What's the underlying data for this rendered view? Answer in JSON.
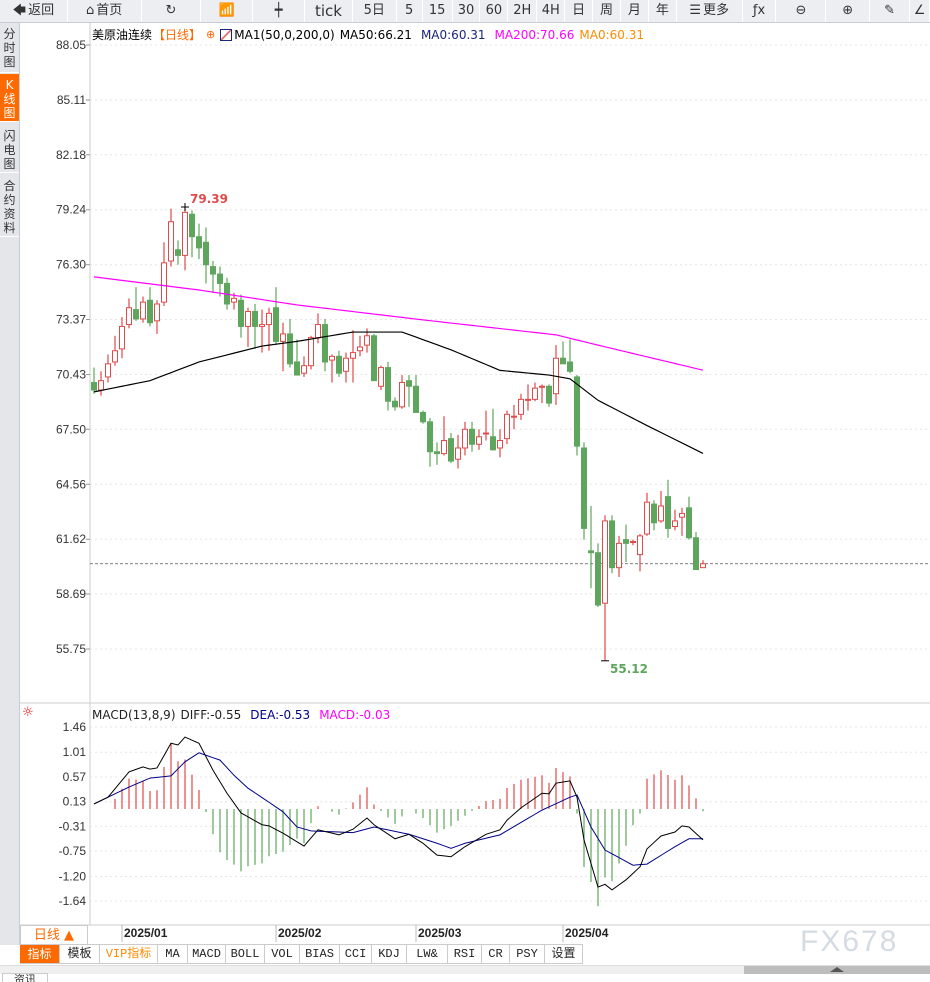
{
  "toolbar": {
    "items": [
      {
        "label": "返回",
        "icon": "back-arrow-icon",
        "glyph": "🡄"
      },
      {
        "label": "首页",
        "icon": "home-icon",
        "glyph": "⌂"
      },
      {
        "label": "",
        "icon": "refresh-icon",
        "glyph": "↻"
      },
      {
        "label": "",
        "icon": "bar-chart-icon",
        "glyph": "📶"
      },
      {
        "label": "",
        "icon": "candlestick-icon",
        "glyph": "┿"
      },
      {
        "label": "tick"
      },
      {
        "label": "5日"
      },
      {
        "label": "5"
      },
      {
        "label": "15"
      },
      {
        "label": "30"
      },
      {
        "label": "60"
      },
      {
        "label": "2H"
      },
      {
        "label": "4H"
      },
      {
        "label": "日"
      },
      {
        "label": "周"
      },
      {
        "label": "月"
      },
      {
        "label": "年"
      },
      {
        "label": "更多",
        "icon": "menu-icon",
        "glyph": "☰"
      },
      {
        "label": "",
        "icon": "function-icon",
        "glyph": "ƒx"
      },
      {
        "label": "",
        "icon": "zoom-out-icon",
        "glyph": "⊖"
      },
      {
        "label": "",
        "icon": "zoom-in-icon",
        "glyph": "⊕"
      },
      {
        "label": "",
        "icon": "pen-icon",
        "glyph": "✎"
      },
      {
        "label": "",
        "icon": "ruler-icon",
        "glyph": "∠"
      }
    ]
  },
  "sidebar": {
    "tabs": [
      {
        "label": [
          "分",
          "时",
          "图"
        ],
        "active": false
      },
      {
        "label": [
          "K",
          "线",
          "图"
        ],
        "active": true
      },
      {
        "label": [
          "闪",
          "电",
          "图"
        ],
        "active": false
      },
      {
        "label": [
          "合",
          "约",
          "资",
          "料"
        ],
        "active": false
      }
    ]
  },
  "header": {
    "instrument": "美原油连续",
    "period": "【日线】",
    "ma_name": "MA1(50,0,200,0)",
    "ma50": "MA50:66.21",
    "ma0a": "MA0:60.31",
    "ma200": "MA200:70.66",
    "ma0b": "MA0:60.31"
  },
  "macd_header": {
    "name": "MACD(13,8,9)",
    "diff": "DIFF:-0.55",
    "dea": "DEA:-0.53",
    "macd": "MACD:-0.03"
  },
  "colors": {
    "up": "#e04a4a",
    "down": "#5ea65e",
    "ma50": "#000000",
    "ma200": "#ff00ff",
    "diff": "#000000",
    "dea": "#00008b",
    "accent": "#ff6a00",
    "last_price_line": "#555555"
  },
  "chart_data": [
    {
      "type": "candlestick",
      "title": "美原油连续",
      "y_ticks": [
        "88.05",
        "85.11",
        "82.18",
        "79.24",
        "76.30",
        "73.37",
        "70.43",
        "67.50",
        "64.56",
        "61.62",
        "58.69",
        "55.75"
      ],
      "ylim": [
        55.75,
        88.05
      ],
      "x_labels": [
        {
          "label": "2025/01",
          "index": 4
        },
        {
          "label": "2025/02",
          "index": 26
        },
        {
          "label": "2025/03",
          "index": 46
        },
        {
          "label": "2025/04",
          "index": 67
        }
      ],
      "ohlc": [
        [
          70.0,
          70.8,
          69.4,
          69.6
        ],
        [
          69.6,
          70.6,
          69.3,
          70.1
        ],
        [
          70.3,
          71.5,
          70.0,
          71.0
        ],
        [
          71.1,
          72.5,
          70.9,
          71.7
        ],
        [
          71.8,
          73.5,
          71.3,
          73.0
        ],
        [
          73.1,
          74.5,
          72.9,
          74.0
        ],
        [
          73.9,
          75.1,
          73.3,
          73.4
        ],
        [
          73.4,
          74.6,
          73.2,
          74.3
        ],
        [
          74.4,
          75.1,
          73.0,
          73.2
        ],
        [
          73.3,
          74.4,
          72.6,
          74.2
        ],
        [
          74.3,
          77.5,
          74.1,
          76.4
        ],
        [
          76.5,
          79.3,
          76.2,
          78.6
        ],
        [
          77.1,
          77.6,
          76.3,
          76.8
        ],
        [
          76.8,
          79.39,
          76.0,
          79.1
        ],
        [
          79.0,
          79.2,
          76.7,
          77.8
        ],
        [
          77.8,
          78.5,
          76.6,
          77.2
        ],
        [
          77.5,
          78.3,
          75.3,
          76.3
        ],
        [
          76.2,
          76.5,
          74.8,
          75.8
        ],
        [
          75.8,
          76.2,
          74.6,
          75.3
        ],
        [
          75.3,
          75.6,
          73.9,
          74.2
        ],
        [
          74.3,
          74.8,
          73.9,
          74.5
        ],
        [
          74.4,
          74.7,
          72.4,
          73.0
        ],
        [
          73.0,
          74.0,
          71.9,
          73.8
        ],
        [
          73.8,
          74.2,
          71.8,
          73.0
        ],
        [
          73.0,
          73.9,
          71.6,
          73.1
        ],
        [
          73.1,
          74.0,
          71.7,
          73.7
        ],
        [
          74.0,
          75.1,
          72.0,
          72.2
        ],
        [
          72.2,
          73.2,
          70.6,
          72.6
        ],
        [
          72.6,
          73.4,
          70.8,
          71.0
        ],
        [
          71.1,
          72.3,
          70.4,
          70.4
        ],
        [
          70.5,
          71.4,
          70.3,
          70.9
        ],
        [
          70.9,
          72.5,
          70.7,
          72.4
        ],
        [
          72.4,
          73.7,
          72.1,
          73.1
        ],
        [
          73.1,
          73.4,
          70.6,
          71.1
        ],
        [
          71.2,
          71.5,
          70.0,
          71.4
        ],
        [
          71.4,
          71.7,
          70.3,
          70.5
        ],
        [
          70.6,
          71.6,
          70.0,
          71.3
        ],
        [
          71.3,
          72.8,
          70.0,
          71.6
        ],
        [
          71.7,
          72.5,
          71.4,
          71.9
        ],
        [
          72.0,
          72.9,
          71.6,
          72.5
        ],
        [
          72.5,
          72.6,
          70.1,
          70.1
        ],
        [
          69.8,
          70.9,
          69.6,
          70.8
        ],
        [
          70.8,
          71.1,
          68.5,
          69.0
        ],
        [
          69.0,
          69.2,
          68.5,
          68.7
        ],
        [
          68.7,
          70.4,
          68.6,
          70.0
        ],
        [
          70.1,
          70.4,
          68.7,
          69.8
        ],
        [
          69.8,
          70.4,
          68.4,
          68.4
        ],
        [
          68.4,
          68.5,
          67.8,
          67.9
        ],
        [
          67.9,
          68.1,
          65.5,
          66.3
        ],
        [
          66.3,
          66.8,
          65.6,
          66.2
        ],
        [
          66.2,
          68.2,
          66.1,
          66.9
        ],
        [
          67.0,
          67.3,
          65.7,
          65.8
        ],
        [
          65.9,
          67.2,
          65.4,
          66.5
        ],
        [
          66.5,
          67.9,
          66.1,
          67.5
        ],
        [
          67.5,
          67.9,
          66.3,
          66.7
        ],
        [
          66.7,
          67.5,
          66.4,
          67.1
        ],
        [
          67.3,
          68.5,
          66.9,
          67.3
        ],
        [
          67.1,
          68.6,
          66.4,
          66.4
        ],
        [
          66.5,
          67.5,
          66.0,
          66.9
        ],
        [
          67.0,
          68.5,
          66.7,
          68.3
        ],
        [
          68.2,
          68.8,
          67.5,
          68.2
        ],
        [
          68.3,
          69.4,
          68.0,
          69.1
        ],
        [
          69.1,
          69.9,
          68.5,
          69.1
        ],
        [
          69.1,
          70.0,
          69.0,
          69.7
        ],
        [
          69.8,
          69.9,
          68.9,
          69.8
        ],
        [
          69.8,
          69.9,
          68.7,
          68.9
        ],
        [
          69.4,
          72.0,
          68.8,
          71.3
        ],
        [
          71.3,
          72.2,
          71.0,
          71.0
        ],
        [
          71.1,
          72.3,
          70.5,
          70.6
        ],
        [
          70.3,
          70.4,
          66.1,
          66.6
        ],
        [
          66.5,
          66.8,
          61.6,
          62.2
        ],
        [
          61.0,
          63.4,
          59.0,
          60.9
        ],
        [
          60.9,
          61.4,
          58.0,
          58.1
        ],
        [
          58.2,
          62.9,
          55.12,
          62.6
        ],
        [
          62.6,
          62.9,
          59.8,
          60.1
        ],
        [
          60.1,
          61.8,
          59.6,
          61.4
        ],
        [
          61.6,
          62.4,
          60.4,
          61.4
        ],
        [
          61.5,
          61.6,
          61.3,
          61.5
        ],
        [
          60.8,
          61.9,
          59.9,
          61.8
        ],
        [
          61.9,
          64.1,
          61.8,
          63.6
        ],
        [
          63.5,
          63.7,
          62.1,
          62.5
        ],
        [
          62.6,
          64.2,
          62.5,
          63.4
        ],
        [
          63.9,
          64.8,
          61.7,
          62.2
        ],
        [
          62.3,
          63.2,
          62.1,
          62.6
        ],
        [
          62.8,
          63.3,
          61.8,
          63.0
        ],
        [
          63.3,
          63.9,
          61.6,
          61.7
        ],
        [
          61.7,
          62.0,
          60.0,
          60.0
        ],
        [
          60.1,
          60.5,
          60.1,
          60.31
        ]
      ],
      "series": [
        {
          "name": "MA50",
          "knots": [
            [
              0,
              69.5
            ],
            [
              8,
              70.1
            ],
            [
              15,
              71.1
            ],
            [
              24,
              71.95
            ],
            [
              29,
              72.2
            ],
            [
              37,
              72.7
            ],
            [
              44,
              72.7
            ],
            [
              51,
              71.75
            ],
            [
              58,
              70.65
            ],
            [
              65,
              70.4
            ],
            [
              68,
              70.2
            ],
            [
              72,
              69.05
            ],
            [
              79,
              67.7
            ],
            [
              87,
              66.21
            ]
          ]
        },
        {
          "name": "MA200",
          "knots": [
            [
              0,
              75.65
            ],
            [
              15,
              74.95
            ],
            [
              29,
              74.15
            ],
            [
              47,
              73.35
            ],
            [
              66,
              72.55
            ],
            [
              72,
              72.0
            ],
            [
              87,
              70.66
            ]
          ]
        }
      ],
      "annotations": {
        "high": "79.39",
        "high_index": 13,
        "low": "55.12",
        "low_index": 73,
        "last_price": 60.31
      }
    },
    {
      "type": "macd",
      "y_ticks": [
        "1.46",
        "1.01",
        "0.57",
        "0.13",
        "-0.31",
        "-0.75",
        "-1.20",
        "-1.64"
      ],
      "series": [
        {
          "name": "DIFF",
          "knots": [
            [
              0,
              0.09
            ],
            [
              2,
              0.21
            ],
            [
              5,
              0.66
            ],
            [
              7,
              0.75
            ],
            [
              8,
              0.71
            ],
            [
              9,
              0.73
            ],
            [
              11,
              1.17
            ],
            [
              12,
              1.14
            ],
            [
              13,
              1.28
            ],
            [
              15,
              1.17
            ],
            [
              17,
              0.69
            ],
            [
              19,
              0.28
            ],
            [
              21,
              -0.07
            ],
            [
              24,
              -0.28
            ],
            [
              25,
              -0.3
            ],
            [
              27,
              -0.43
            ],
            [
              30,
              -0.66
            ],
            [
              32,
              -0.37
            ],
            [
              35,
              -0.46
            ],
            [
              37,
              -0.36
            ],
            [
              39,
              -0.16
            ],
            [
              40,
              -0.28
            ],
            [
              43,
              -0.53
            ],
            [
              45,
              -0.45
            ],
            [
              47,
              -0.61
            ],
            [
              49,
              -0.82
            ],
            [
              51,
              -0.85
            ],
            [
              53,
              -0.67
            ],
            [
              56,
              -0.45
            ],
            [
              58,
              -0.37
            ],
            [
              59,
              -0.2
            ],
            [
              61,
              0.02
            ],
            [
              64,
              0.28
            ],
            [
              65,
              0.27
            ],
            [
              66,
              0.46
            ],
            [
              68,
              0.5
            ],
            [
              69,
              0.21
            ],
            [
              70,
              -0.55
            ],
            [
              72,
              -1.39
            ],
            [
              73,
              -1.34
            ],
            [
              74,
              -1.44
            ],
            [
              76,
              -1.26
            ],
            [
              78,
              -1.03
            ],
            [
              79,
              -0.71
            ],
            [
              81,
              -0.48
            ],
            [
              83,
              -0.41
            ],
            [
              84,
              -0.3
            ],
            [
              85,
              -0.32
            ],
            [
              87,
              -0.55
            ]
          ]
        },
        {
          "name": "DEA",
          "knots": [
            [
              0,
              0.09
            ],
            [
              5,
              0.39
            ],
            [
              8,
              0.55
            ],
            [
              11,
              0.59
            ],
            [
              13,
              0.84
            ],
            [
              15,
              1.0
            ],
            [
              18,
              0.87
            ],
            [
              20,
              0.6
            ],
            [
              22,
              0.37
            ],
            [
              25,
              0.12
            ],
            [
              27,
              -0.05
            ],
            [
              29,
              -0.32
            ],
            [
              31,
              -0.39
            ],
            [
              37,
              -0.42
            ],
            [
              40,
              -0.32
            ],
            [
              45,
              -0.45
            ],
            [
              49,
              -0.61
            ],
            [
              51,
              -0.7
            ],
            [
              53,
              -0.61
            ],
            [
              58,
              -0.46
            ],
            [
              64,
              -0.02
            ],
            [
              68,
              0.21
            ],
            [
              69,
              0.25
            ],
            [
              71,
              -0.32
            ],
            [
              73,
              -0.73
            ],
            [
              77,
              -1.0
            ],
            [
              79,
              -0.98
            ],
            [
              83,
              -0.67
            ],
            [
              85,
              -0.53
            ],
            [
              87,
              -0.53
            ]
          ]
        }
      ]
    }
  ],
  "period_selector": "日线 ▲",
  "indicator_tabs": [
    {
      "label": "指标",
      "active": true
    },
    {
      "label": "模板"
    },
    {
      "label": "VIP指标",
      "vip": true
    },
    {
      "label": "MA"
    },
    {
      "label": "MACD"
    },
    {
      "label": "BOLL"
    },
    {
      "label": "VOL"
    },
    {
      "label": "BIAS"
    },
    {
      "label": "CCI"
    },
    {
      "label": "KDJ"
    },
    {
      "label": "LW&"
    },
    {
      "label": "RSI"
    },
    {
      "label": "CR"
    },
    {
      "label": "PSY"
    },
    {
      "label": "设置"
    }
  ],
  "watermark": "FX678",
  "bottom_tab": "资讯"
}
